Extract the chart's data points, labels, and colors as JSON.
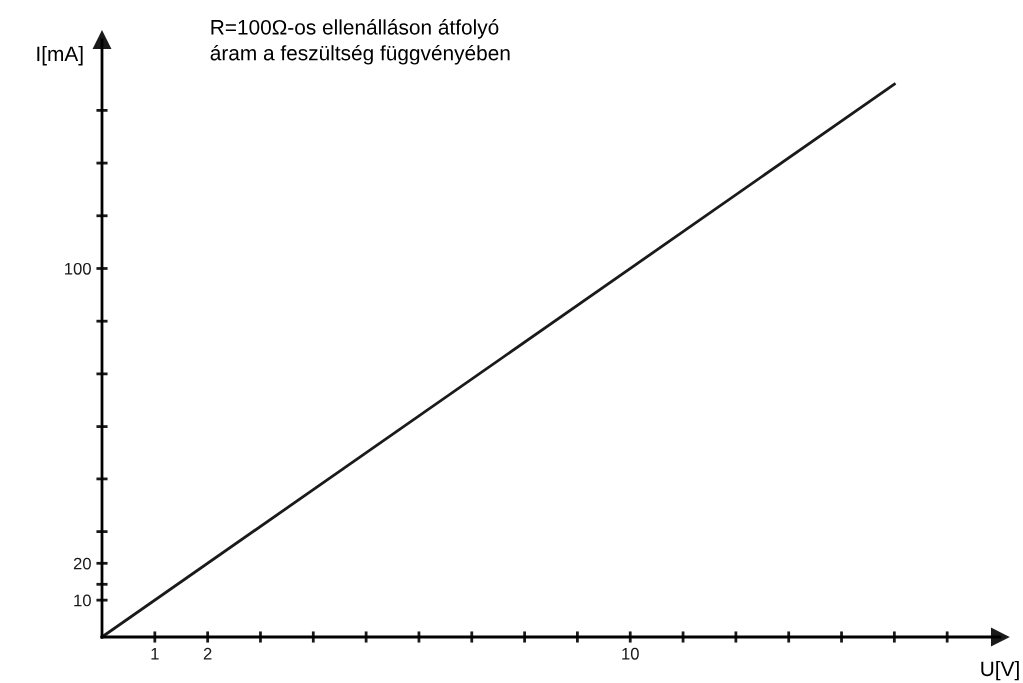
{
  "chart_data": {
    "type": "line",
    "title": "R=100Ω-os ellenálláson átfolyó\náram a feszültség függvényében",
    "xlabel": "U[V]",
    "ylabel": "I[mA]",
    "x": [
      0,
      15
    ],
    "series": [
      {
        "color": "#1a1a1a",
        "values": [
          0,
          150
        ]
      }
    ],
    "xlim": [
      0,
      17
    ],
    "ylim": [
      0,
      162
    ],
    "xticks": [
      1,
      2,
      {
        "value": 3,
        "label": null
      },
      {
        "value": 4,
        "label": null
      },
      {
        "value": 5,
        "label": null
      },
      {
        "value": 6,
        "label": null
      },
      {
        "value": 7,
        "label": null
      },
      {
        "value": 8,
        "label": null
      },
      {
        "value": 9,
        "label": null
      },
      10,
      {
        "value": 11,
        "label": null
      },
      {
        "value": 12,
        "label": null
      },
      {
        "value": 13,
        "label": null
      },
      {
        "value": 14,
        "label": null
      },
      {
        "value": 15,
        "label": null
      },
      {
        "value": 16,
        "label": null
      }
    ],
    "yticks": [
      10,
      20,
      {
        "value": 14.3,
        "label": null
      },
      {
        "value": 28.6,
        "label": null
      },
      {
        "value": 42.9,
        "label": null
      },
      {
        "value": 57.1,
        "label": null
      },
      {
        "value": 71.4,
        "label": null
      },
      {
        "value": 85.7,
        "label": null
      },
      100,
      {
        "value": 114.3,
        "label": null
      },
      {
        "value": 128.6,
        "label": null
      },
      {
        "value": 142.9,
        "label": null
      }
    ],
    "grid": false,
    "legend": false,
    "marker": "none",
    "line_style": "solid"
  }
}
